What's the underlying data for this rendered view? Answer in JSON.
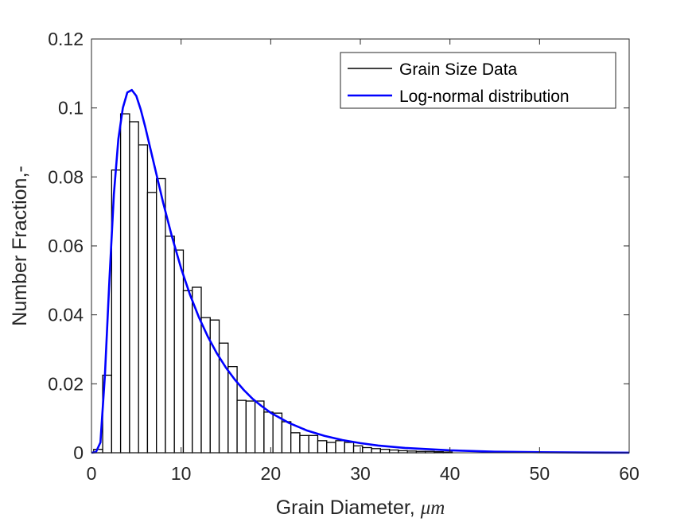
{
  "chart_data": {
    "type": "bar",
    "title": "",
    "xlabel_text": "Grain Diameter, ",
    "xlabel_unit": "μm",
    "ylabel": "Number Fraction,-",
    "xlim": [
      0,
      60
    ],
    "ylim": [
      0,
      0.12
    ],
    "xticks": [
      0,
      10,
      20,
      30,
      40,
      50,
      60
    ],
    "yticks": [
      0,
      0.02,
      0.04,
      0.06,
      0.08,
      0.1,
      0.12
    ],
    "xtick_labels": [
      "0",
      "10",
      "20",
      "30",
      "40",
      "50",
      "60"
    ],
    "ytick_labels": [
      "0",
      "0.02",
      "0.04",
      "0.06",
      "0.08",
      "0.1",
      "0.12"
    ],
    "grid": false,
    "legend_position": "top-right",
    "series": [
      {
        "name": "Grain Size Data",
        "kind": "histogram",
        "color": "#000000",
        "bin_edges": [
          0.25,
          1.25,
          2.25,
          3.25,
          4.25,
          5.25,
          6.25,
          7.25,
          8.25,
          9.25,
          10.25,
          11.25,
          12.25,
          13.25,
          14.25,
          15.25,
          16.25,
          17.25,
          18.25,
          19.25,
          20.25,
          21.25,
          22.25,
          23.25,
          24.25,
          25.25,
          26.25,
          27.25,
          28.25,
          29.25,
          30.25,
          31.25,
          32.25,
          33.25,
          34.25,
          35.25,
          36.25,
          37.25,
          38.25,
          39.25,
          40.25
        ],
        "values": [
          0.001,
          0.0225,
          0.082,
          0.0983,
          0.096,
          0.0893,
          0.0755,
          0.0795,
          0.0628,
          0.0588,
          0.047,
          0.048,
          0.0392,
          0.0385,
          0.0318,
          0.025,
          0.0152,
          0.015,
          0.015,
          0.0118,
          0.0115,
          0.009,
          0.0058,
          0.005,
          0.005,
          0.0035,
          0.003,
          0.0035,
          0.003,
          0.002,
          0.0015,
          0.0012,
          0.001,
          0.0008,
          0.0006,
          0.0005,
          0.0004,
          0.0004,
          0.0003,
          0.0002
        ]
      },
      {
        "name": "Log-normal distribution",
        "kind": "line",
        "color": "#0000ff",
        "x": [
          0,
          0.5,
          1,
          1.5,
          2,
          2.5,
          3,
          3.5,
          4,
          4.5,
          5,
          5.5,
          6,
          6.5,
          7,
          7.5,
          8,
          9,
          10,
          11,
          12,
          13,
          14,
          15,
          16,
          17,
          18,
          19,
          20,
          22,
          24,
          26,
          28,
          30,
          32,
          35,
          40,
          45,
          50,
          55,
          60
        ],
        "y": [
          0,
          0.0002,
          0.003,
          0.0225,
          0.05,
          0.075,
          0.091,
          0.1,
          0.1045,
          0.1052,
          0.1035,
          0.0995,
          0.0945,
          0.089,
          0.0835,
          0.078,
          0.0725,
          0.0625,
          0.0535,
          0.0458,
          0.0392,
          0.0336,
          0.0288,
          0.0247,
          0.0212,
          0.0182,
          0.0156,
          0.0135,
          0.0116,
          0.0087,
          0.0065,
          0.0049,
          0.0037,
          0.0028,
          0.0021,
          0.0014,
          0.0007,
          0.0003,
          0.00015,
          7e-05,
          3e-05
        ]
      }
    ]
  }
}
